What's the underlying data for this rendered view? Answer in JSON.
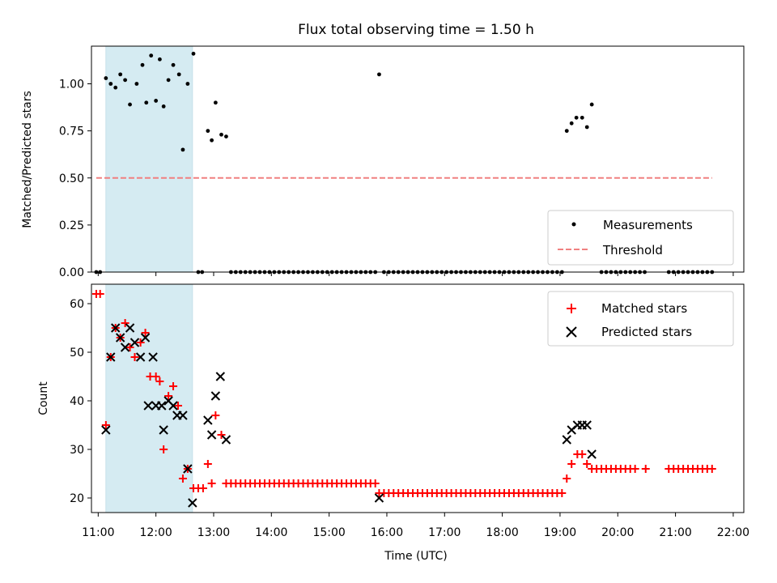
{
  "chart_data": [
    {
      "type": "scatter",
      "title": "Flux total observing time = 1.50 h",
      "xlabel": "",
      "ylabel": "Matched/Predicted stars",
      "xlim": [
        "10:53",
        "22:11"
      ],
      "ylim": [
        0,
        1.2
      ],
      "yticks": [
        "0.00",
        "0.25",
        "0.50",
        "0.75",
        "1.00"
      ],
      "highlight_span": {
        "from": "11:08",
        "to": "12:38",
        "color": "#add8e6"
      },
      "threshold": {
        "name": "Threshold",
        "y": 0.5,
        "from": "10:58",
        "to": "21:38",
        "color": "#f08080"
      },
      "legend": {
        "position": "lower-right",
        "entries": [
          "Measurements",
          "Threshold"
        ]
      },
      "series": [
        {
          "name": "Measurements",
          "marker": "dot",
          "color": "#000000",
          "points": [
            [
              "10:58",
              0
            ],
            [
              "11:02",
              0
            ],
            [
              "11:08",
              1.03
            ],
            [
              "11:13",
              1.0
            ],
            [
              "11:18",
              0.98
            ],
            [
              "11:23",
              1.05
            ],
            [
              "11:28",
              1.02
            ],
            [
              "11:33",
              0.89
            ],
            [
              "11:40",
              1.0
            ],
            [
              "11:46",
              1.1
            ],
            [
              "11:50",
              0.9
            ],
            [
              "11:55",
              1.15
            ],
            [
              "12:00",
              0.91
            ],
            [
              "12:04",
              1.13
            ],
            [
              "12:08",
              0.88
            ],
            [
              "12:13",
              1.02
            ],
            [
              "12:18",
              1.1
            ],
            [
              "12:24",
              1.05
            ],
            [
              "12:28",
              0.65
            ],
            [
              "12:33",
              1.0
            ],
            [
              "12:39",
              1.16
            ],
            [
              "12:44",
              0
            ],
            [
              "12:48",
              0
            ],
            [
              "12:54",
              0.75
            ],
            [
              "12:58",
              0.7
            ],
            [
              "13:02",
              0.9
            ],
            [
              "13:08",
              0.73
            ],
            [
              "13:13",
              0.72
            ],
            [
              "15:52",
              1.05
            ],
            [
              "19:07",
              0.75
            ],
            [
              "19:12",
              0.79
            ],
            [
              "19:17",
              0.82
            ],
            [
              "19:23",
              0.82
            ],
            [
              "19:28",
              0.77
            ],
            [
              "19:33",
              0.89
            ],
            [
              "19:43",
              0
            ],
            [
              "19:48",
              0
            ],
            [
              "19:53",
              0
            ],
            [
              "19:58",
              0
            ],
            [
              "20:03",
              0
            ],
            [
              "20:08",
              0
            ],
            [
              "20:13",
              0
            ],
            [
              "20:18",
              0
            ],
            [
              "20:23",
              0
            ],
            [
              "20:28",
              0
            ],
            [
              "20:53",
              0
            ],
            [
              "20:58",
              0
            ],
            [
              "21:03",
              0
            ],
            [
              "21:08",
              0
            ],
            [
              "21:13",
              0
            ],
            [
              "21:18",
              0
            ],
            [
              "21:23",
              0
            ],
            [
              "21:28",
              0
            ],
            [
              "21:33",
              0
            ],
            [
              "21:38",
              0
            ]
          ],
          "zero_runs": [
            {
              "from": "13:18",
              "to": "15:48",
              "step_minutes": 5,
              "y": 0
            },
            {
              "from": "15:57",
              "to": "17:42",
              "step_minutes": 5,
              "y": 0
            },
            {
              "from": "17:47",
              "to": "19:02",
              "step_minutes": 5,
              "y": 0
            }
          ]
        }
      ]
    },
    {
      "type": "scatter",
      "title": "",
      "xlabel": "Time (UTC)",
      "ylabel": "Count",
      "xlim": [
        "10:53",
        "22:11"
      ],
      "ylim": [
        17,
        64
      ],
      "yticks": [
        "20",
        "30",
        "40",
        "50",
        "60"
      ],
      "xticks": [
        "11:00",
        "12:00",
        "13:00",
        "14:00",
        "15:00",
        "16:00",
        "17:00",
        "18:00",
        "19:00",
        "20:00",
        "21:00",
        "22:00"
      ],
      "highlight_span": {
        "from": "11:08",
        "to": "12:38",
        "color": "#add8e6"
      },
      "legend": {
        "position": "top-right",
        "entries": [
          "Matched stars",
          "Predicted stars"
        ]
      },
      "series": [
        {
          "name": "Matched stars",
          "marker": "plus",
          "color": "#ff0000",
          "points": [
            [
              "10:58",
              62
            ],
            [
              "11:02",
              62
            ],
            [
              "11:08",
              35
            ],
            [
              "11:13",
              49
            ],
            [
              "11:18",
              55
            ],
            [
              "11:23",
              53
            ],
            [
              "11:28",
              56
            ],
            [
              "11:33",
              51
            ],
            [
              "11:38",
              49
            ],
            [
              "11:44",
              52
            ],
            [
              "11:49",
              54
            ],
            [
              "11:54",
              45
            ],
            [
              "12:00",
              45
            ],
            [
              "12:04",
              44
            ],
            [
              "12:08",
              30
            ],
            [
              "12:13",
              41
            ],
            [
              "12:18",
              43
            ],
            [
              "12:23",
              39
            ],
            [
              "12:28",
              24
            ],
            [
              "12:33",
              26
            ],
            [
              "12:39",
              22
            ],
            [
              "12:44",
              22
            ],
            [
              "12:49",
              22
            ],
            [
              "12:54",
              27
            ],
            [
              "12:58",
              23
            ],
            [
              "13:02",
              37
            ],
            [
              "13:08",
              33
            ],
            [
              "15:52",
              21
            ],
            [
              "19:07",
              24
            ],
            [
              "19:12",
              27
            ],
            [
              "19:18",
              29
            ],
            [
              "19:23",
              29
            ],
            [
              "19:28",
              27
            ],
            [
              "19:33",
              26
            ],
            [
              "19:38",
              26
            ],
            [
              "19:43",
              26
            ],
            [
              "19:48",
              26
            ],
            [
              "19:53",
              26
            ],
            [
              "19:58",
              26
            ],
            [
              "20:03",
              26
            ],
            [
              "20:08",
              26
            ],
            [
              "20:13",
              26
            ],
            [
              "20:18",
              26
            ],
            [
              "20:29",
              26
            ],
            [
              "20:53",
              26
            ],
            [
              "20:58",
              26
            ],
            [
              "21:03",
              26
            ],
            [
              "21:08",
              26
            ],
            [
              "21:13",
              26
            ],
            [
              "21:18",
              26
            ],
            [
              "21:23",
              26
            ],
            [
              "21:28",
              26
            ],
            [
              "21:33",
              26
            ],
            [
              "21:38",
              26
            ]
          ],
          "constant_runs": [
            {
              "from": "13:13",
              "to": "15:48",
              "step_minutes": 5,
              "y": 23
            },
            {
              "from": "15:57",
              "to": "17:42",
              "step_minutes": 5,
              "y": 21
            },
            {
              "from": "17:47",
              "to": "19:02",
              "step_minutes": 5,
              "y": 21
            }
          ]
        },
        {
          "name": "Predicted stars",
          "marker": "x",
          "color": "#000000",
          "points": [
            [
              "11:08",
              34
            ],
            [
              "11:13",
              49
            ],
            [
              "11:18",
              55
            ],
            [
              "11:23",
              53
            ],
            [
              "11:28",
              51
            ],
            [
              "11:33",
              55
            ],
            [
              "11:38",
              52
            ],
            [
              "11:44",
              49
            ],
            [
              "11:49",
              53
            ],
            [
              "11:52",
              39
            ],
            [
              "11:57",
              49
            ],
            [
              "12:00",
              39
            ],
            [
              "12:06",
              39
            ],
            [
              "12:08",
              34
            ],
            [
              "12:13",
              40
            ],
            [
              "12:18",
              39
            ],
            [
              "12:22",
              37
            ],
            [
              "12:28",
              37
            ],
            [
              "12:33",
              26
            ],
            [
              "12:38",
              19
            ],
            [
              "12:54",
              36
            ],
            [
              "12:58",
              33
            ],
            [
              "13:02",
              41
            ],
            [
              "13:07",
              45
            ],
            [
              "13:13",
              32
            ],
            [
              "15:52",
              20
            ],
            [
              "19:07",
              32
            ],
            [
              "19:12",
              34
            ],
            [
              "19:18",
              35
            ],
            [
              "19:23",
              35
            ],
            [
              "19:28",
              35
            ],
            [
              "19:33",
              29
            ]
          ]
        }
      ]
    }
  ]
}
